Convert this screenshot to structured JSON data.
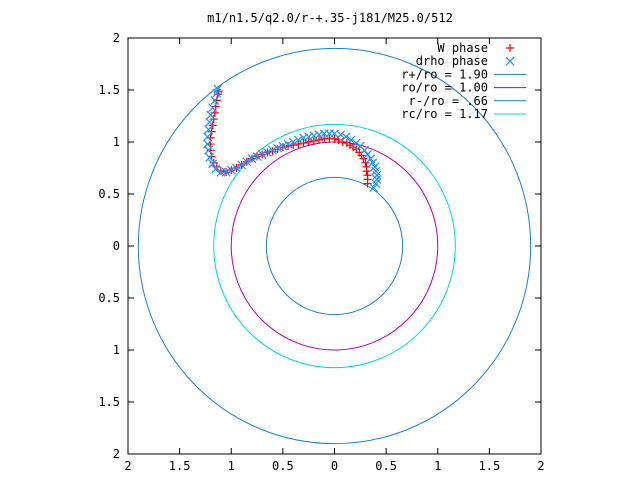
{
  "chart_data": {
    "type": "scatter",
    "title": "m1/n1.5/q2.0/r-+.35-j181/M25.0/512",
    "xlabel": "",
    "ylabel": "",
    "xlim": [
      -2,
      2
    ],
    "ylim": [
      -2,
      2
    ],
    "x_tick_values": [
      -2,
      -1.5,
      -1,
      -0.5,
      0,
      0.5,
      1,
      1.5,
      2
    ],
    "x_tick_labels": [
      "2",
      "1.5",
      "1",
      "0.5",
      "0",
      "0.5",
      "1",
      "1.5",
      "2"
    ],
    "y_tick_values": [
      2,
      1.5,
      1,
      0.5,
      0,
      -0.5,
      -1,
      -1.5,
      -2
    ],
    "y_tick_labels": [
      "2",
      "1.5",
      "1",
      "0.5",
      "0",
      "0.5",
      "1",
      "1.5",
      "2"
    ],
    "grid": false,
    "legend_placement": "top-right",
    "series": [
      {
        "name": "W phase",
        "marker": "plus",
        "color": "#ff0000",
        "points": [
          [
            0.32,
            0.6
          ],
          [
            0.32,
            0.64
          ],
          [
            0.32,
            0.68
          ],
          [
            0.31,
            0.72
          ],
          [
            0.31,
            0.76
          ],
          [
            0.3,
            0.8
          ],
          [
            0.28,
            0.84
          ],
          [
            0.26,
            0.87
          ],
          [
            0.24,
            0.9
          ],
          [
            0.21,
            0.93
          ],
          [
            0.18,
            0.95
          ],
          [
            0.15,
            0.97
          ],
          [
            0.12,
            0.99
          ],
          [
            0.08,
            1.0
          ],
          [
            0.04,
            1.02
          ],
          [
            0.0,
            1.03
          ],
          [
            -0.05,
            1.03
          ],
          [
            -0.1,
            1.03
          ],
          [
            -0.15,
            1.02
          ],
          [
            -0.2,
            1.01
          ],
          [
            -0.25,
            1.0
          ],
          [
            -0.3,
            0.99
          ],
          [
            -0.35,
            0.98
          ],
          [
            -0.4,
            0.97
          ],
          [
            -0.45,
            0.96
          ],
          [
            -0.5,
            0.95
          ],
          [
            -0.55,
            0.93
          ],
          [
            -0.6,
            0.91
          ],
          [
            -0.65,
            0.9
          ],
          [
            -0.7,
            0.88
          ],
          [
            -0.75,
            0.86
          ],
          [
            -0.8,
            0.84
          ],
          [
            -0.85,
            0.81
          ],
          [
            -0.9,
            0.78
          ],
          [
            -0.95,
            0.75
          ],
          [
            -1.0,
            0.73
          ],
          [
            -1.05,
            0.71
          ],
          [
            -1.1,
            0.72
          ],
          [
            -1.14,
            0.76
          ],
          [
            -1.17,
            0.8
          ],
          [
            -1.19,
            0.86
          ],
          [
            -1.2,
            0.92
          ],
          [
            -1.2,
            0.98
          ],
          [
            -1.2,
            1.04
          ],
          [
            -1.19,
            1.1
          ],
          [
            -1.18,
            1.16
          ],
          [
            -1.17,
            1.22
          ],
          [
            -1.16,
            1.28
          ],
          [
            -1.15,
            1.34
          ],
          [
            -1.14,
            1.4
          ],
          [
            -1.13,
            1.46
          ],
          [
            -1.12,
            1.49
          ]
        ]
      },
      {
        "name": "drho phase",
        "marker": "cross",
        "color": "#1e90ff",
        "points": [
          [
            0.38,
            0.56
          ],
          [
            0.4,
            0.6
          ],
          [
            0.41,
            0.64
          ],
          [
            0.41,
            0.68
          ],
          [
            0.4,
            0.72
          ],
          [
            0.39,
            0.76
          ],
          [
            0.37,
            0.8
          ],
          [
            0.35,
            0.84
          ],
          [
            0.32,
            0.88
          ],
          [
            0.29,
            0.92
          ],
          [
            0.25,
            0.96
          ],
          [
            0.21,
            0.99
          ],
          [
            0.16,
            1.02
          ],
          [
            0.11,
            1.05
          ],
          [
            0.06,
            1.07
          ],
          [
            0.0,
            1.08
          ],
          [
            -0.05,
            1.08
          ],
          [
            -0.1,
            1.08
          ],
          [
            -0.15,
            1.07
          ],
          [
            -0.2,
            1.06
          ],
          [
            -0.25,
            1.05
          ],
          [
            -0.3,
            1.04
          ],
          [
            -0.35,
            1.02
          ],
          [
            -0.4,
            1.0
          ],
          [
            -0.45,
            0.98
          ],
          [
            -0.5,
            0.96
          ],
          [
            -0.55,
            0.94
          ],
          [
            -0.6,
            0.92
          ],
          [
            -0.65,
            0.9
          ],
          [
            -0.7,
            0.88
          ],
          [
            -0.75,
            0.86
          ],
          [
            -0.8,
            0.84
          ],
          [
            -0.85,
            0.81
          ],
          [
            -0.9,
            0.78
          ],
          [
            -0.95,
            0.75
          ],
          [
            -1.0,
            0.73
          ],
          [
            -1.05,
            0.71
          ],
          [
            -1.1,
            0.71
          ],
          [
            -1.15,
            0.74
          ],
          [
            -1.18,
            0.79
          ],
          [
            -1.21,
            0.85
          ],
          [
            -1.22,
            0.92
          ],
          [
            -1.23,
            0.98
          ],
          [
            -1.23,
            1.05
          ],
          [
            -1.22,
            1.12
          ],
          [
            -1.21,
            1.19
          ],
          [
            -1.2,
            1.26
          ],
          [
            -1.18,
            1.33
          ],
          [
            -1.16,
            1.4
          ],
          [
            -1.14,
            1.47
          ],
          [
            -1.13,
            1.51
          ]
        ]
      }
    ],
    "circles": [
      {
        "name": "r+/ro = 1.90",
        "r": 1.9,
        "color": "#1e7fc8"
      },
      {
        "name": "ro/ro = 1.00",
        "r": 1.0,
        "color": "#b000b0"
      },
      {
        "name": "r-/ro = .66",
        "r": 0.66,
        "color": "#1e7fc8"
      },
      {
        "name": "rc/ro = 1.17",
        "r": 1.17,
        "color": "#00d8d8"
      }
    ]
  }
}
